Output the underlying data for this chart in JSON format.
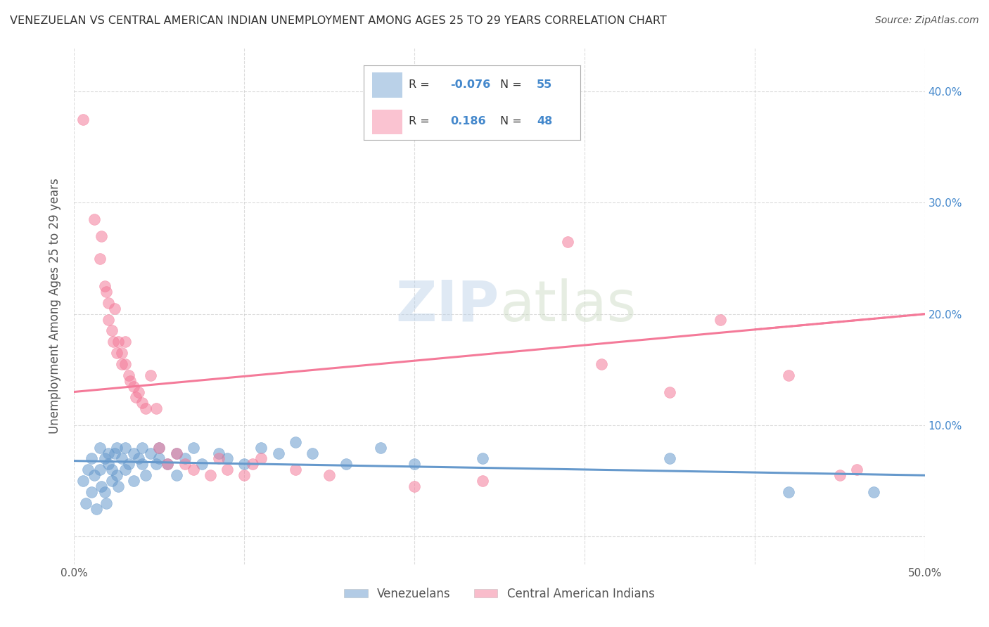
{
  "title": "VENEZUELAN VS CENTRAL AMERICAN INDIAN UNEMPLOYMENT AMONG AGES 25 TO 29 YEARS CORRELATION CHART",
  "source": "Source: ZipAtlas.com",
  "ylabel": "Unemployment Among Ages 25 to 29 years",
  "xlim": [
    0.0,
    0.5
  ],
  "ylim": [
    -0.025,
    0.44
  ],
  "venezuelan_color": "#6699cc",
  "central_american_color": "#f47a99",
  "right_tick_color": "#4488cc",
  "background_color": "#ffffff",
  "grid_color": "#cccccc",
  "title_color": "#333333",
  "axis_label_color": "#555555",
  "tick_color": "#555555",
  "venezuelan_line": {
    "x0": 0.0,
    "y0": 0.068,
    "x1": 0.5,
    "y1": 0.055
  },
  "central_american_line": {
    "x0": 0.0,
    "y0": 0.13,
    "x1": 0.5,
    "y1": 0.2
  },
  "venezuelan_scatter": [
    [
      0.005,
      0.05
    ],
    [
      0.007,
      0.03
    ],
    [
      0.008,
      0.06
    ],
    [
      0.01,
      0.04
    ],
    [
      0.01,
      0.07
    ],
    [
      0.012,
      0.055
    ],
    [
      0.013,
      0.025
    ],
    [
      0.015,
      0.06
    ],
    [
      0.015,
      0.08
    ],
    [
      0.016,
      0.045
    ],
    [
      0.018,
      0.07
    ],
    [
      0.018,
      0.04
    ],
    [
      0.019,
      0.03
    ],
    [
      0.02,
      0.065
    ],
    [
      0.02,
      0.075
    ],
    [
      0.022,
      0.05
    ],
    [
      0.022,
      0.06
    ],
    [
      0.024,
      0.075
    ],
    [
      0.025,
      0.055
    ],
    [
      0.025,
      0.08
    ],
    [
      0.026,
      0.045
    ],
    [
      0.028,
      0.07
    ],
    [
      0.03,
      0.06
    ],
    [
      0.03,
      0.08
    ],
    [
      0.032,
      0.065
    ],
    [
      0.035,
      0.075
    ],
    [
      0.035,
      0.05
    ],
    [
      0.038,
      0.07
    ],
    [
      0.04,
      0.08
    ],
    [
      0.04,
      0.065
    ],
    [
      0.042,
      0.055
    ],
    [
      0.045,
      0.075
    ],
    [
      0.048,
      0.065
    ],
    [
      0.05,
      0.07
    ],
    [
      0.05,
      0.08
    ],
    [
      0.055,
      0.065
    ],
    [
      0.06,
      0.075
    ],
    [
      0.06,
      0.055
    ],
    [
      0.065,
      0.07
    ],
    [
      0.07,
      0.08
    ],
    [
      0.075,
      0.065
    ],
    [
      0.085,
      0.075
    ],
    [
      0.09,
      0.07
    ],
    [
      0.1,
      0.065
    ],
    [
      0.11,
      0.08
    ],
    [
      0.12,
      0.075
    ],
    [
      0.13,
      0.085
    ],
    [
      0.14,
      0.075
    ],
    [
      0.16,
      0.065
    ],
    [
      0.18,
      0.08
    ],
    [
      0.2,
      0.065
    ],
    [
      0.24,
      0.07
    ],
    [
      0.35,
      0.07
    ],
    [
      0.42,
      0.04
    ],
    [
      0.47,
      0.04
    ]
  ],
  "central_american_scatter": [
    [
      0.005,
      0.375
    ],
    [
      0.012,
      0.285
    ],
    [
      0.015,
      0.25
    ],
    [
      0.016,
      0.27
    ],
    [
      0.018,
      0.225
    ],
    [
      0.019,
      0.22
    ],
    [
      0.02,
      0.21
    ],
    [
      0.02,
      0.195
    ],
    [
      0.022,
      0.185
    ],
    [
      0.023,
      0.175
    ],
    [
      0.024,
      0.205
    ],
    [
      0.025,
      0.165
    ],
    [
      0.026,
      0.175
    ],
    [
      0.028,
      0.155
    ],
    [
      0.028,
      0.165
    ],
    [
      0.03,
      0.175
    ],
    [
      0.03,
      0.155
    ],
    [
      0.032,
      0.145
    ],
    [
      0.033,
      0.14
    ],
    [
      0.035,
      0.135
    ],
    [
      0.036,
      0.125
    ],
    [
      0.038,
      0.13
    ],
    [
      0.04,
      0.12
    ],
    [
      0.042,
      0.115
    ],
    [
      0.045,
      0.145
    ],
    [
      0.048,
      0.115
    ],
    [
      0.05,
      0.08
    ],
    [
      0.055,
      0.065
    ],
    [
      0.06,
      0.075
    ],
    [
      0.065,
      0.065
    ],
    [
      0.07,
      0.06
    ],
    [
      0.08,
      0.055
    ],
    [
      0.085,
      0.07
    ],
    [
      0.09,
      0.06
    ],
    [
      0.1,
      0.055
    ],
    [
      0.105,
      0.065
    ],
    [
      0.11,
      0.07
    ],
    [
      0.13,
      0.06
    ],
    [
      0.15,
      0.055
    ],
    [
      0.2,
      0.045
    ],
    [
      0.24,
      0.05
    ],
    [
      0.29,
      0.265
    ],
    [
      0.31,
      0.155
    ],
    [
      0.35,
      0.13
    ],
    [
      0.38,
      0.195
    ],
    [
      0.42,
      0.145
    ],
    [
      0.45,
      0.055
    ],
    [
      0.46,
      0.06
    ]
  ]
}
